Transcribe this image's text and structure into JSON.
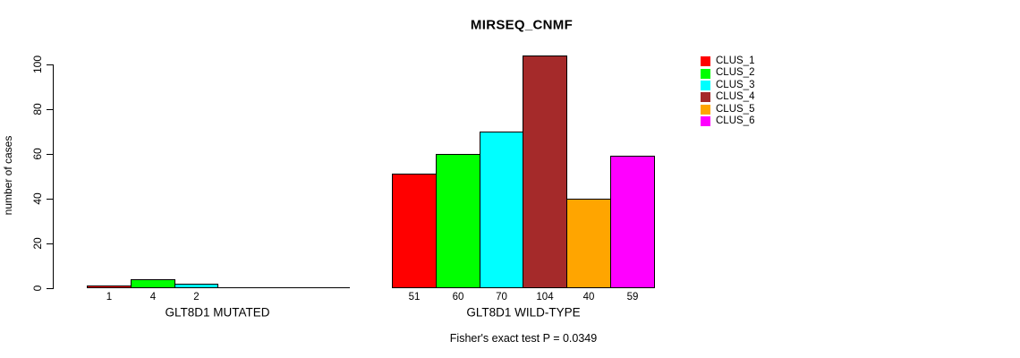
{
  "chart_data": {
    "type": "bar",
    "title": "MIRSEQ_CNMF",
    "ylabel": "number of cases",
    "yticks": [
      0,
      20,
      40,
      60,
      80,
      100
    ],
    "ylim": [
      0,
      104
    ],
    "grid": false,
    "legend_position": "right",
    "categories": [
      "CLUS_1",
      "CLUS_2",
      "CLUS_3",
      "CLUS_4",
      "CLUS_5",
      "CLUS_6"
    ],
    "colors": [
      "#FF0000",
      "#00FF00",
      "#00FFFF",
      "#A52A2A",
      "#FFA500",
      "#FF00FF"
    ],
    "groups": [
      {
        "label": "GLT8D1 MUTATED",
        "values": [
          1,
          4,
          2,
          0,
          0,
          0
        ],
        "bar_labels": [
          "1",
          "4",
          "2",
          null,
          null,
          null
        ]
      },
      {
        "label": "GLT8D1 WILD-TYPE",
        "values": [
          51,
          60,
          70,
          104,
          40,
          59
        ],
        "bar_labels": [
          "51",
          "60",
          "70",
          "104",
          "40",
          "59"
        ]
      }
    ],
    "annotation": "Fisher's exact test P = 0.0349"
  }
}
